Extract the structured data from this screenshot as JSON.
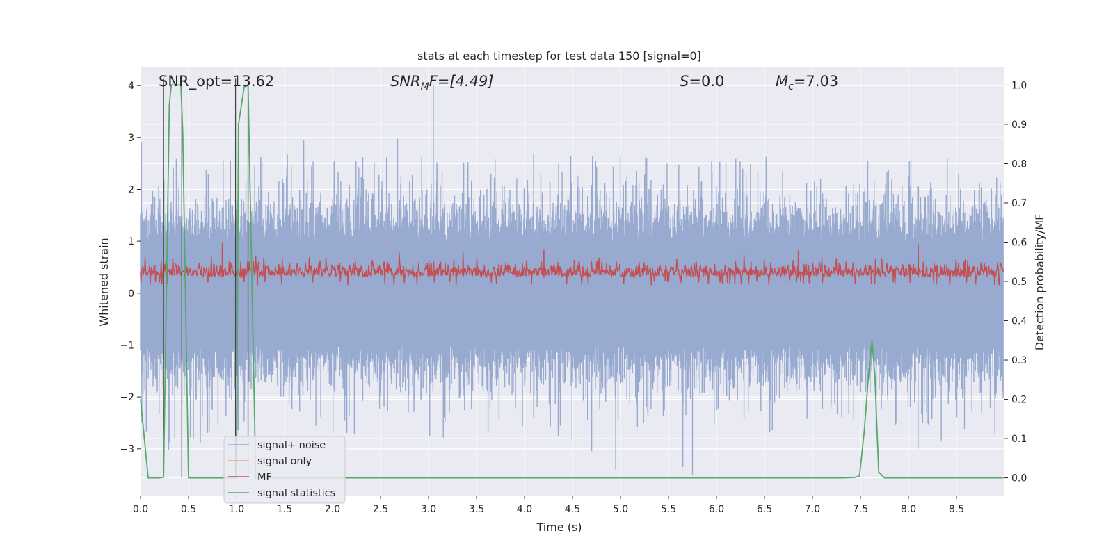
{
  "chart_data": {
    "type": "line",
    "title": "stats at each timestep for test data 150 [signal=0]",
    "xlabel": "Time (s)",
    "ylabel_left": "Whitened strain",
    "ylabel_right": "Detection probability/MF",
    "xlim": [
      0.0,
      9.0
    ],
    "ylim_left": [
      -3.9,
      4.35
    ],
    "ylim_right": [
      -0.045,
      1.045
    ],
    "x_ticks": [
      0.0,
      0.5,
      1.0,
      1.5,
      2.0,
      2.5,
      3.0,
      3.5,
      4.0,
      4.5,
      5.0,
      5.5,
      6.0,
      6.5,
      7.0,
      7.5,
      8.0,
      8.5
    ],
    "x_tick_labels": [
      "0.0",
      "0.5",
      "1.0",
      "1.5",
      "2.0",
      "2.5",
      "3.0",
      "3.5",
      "4.0",
      "4.5",
      "5.0",
      "5.5",
      "6.0",
      "6.5",
      "7.0",
      "7.5",
      "8.0",
      "8.5"
    ],
    "y_ticks_left": [
      4,
      3,
      2,
      1,
      0,
      -1,
      -2,
      -3
    ],
    "y_tick_labels_left": [
      "4",
      "3",
      "2",
      "1",
      "0",
      "−1",
      "−2",
      "−3"
    ],
    "y_ticks_right": [
      1.0,
      0.9,
      0.8,
      0.7,
      0.6,
      0.5,
      0.4,
      0.3,
      0.2,
      0.1,
      0.0
    ],
    "y_tick_labels_right": [
      "1.0",
      "0.9",
      "0.8",
      "0.7",
      "0.6",
      "0.5",
      "0.4",
      "0.3",
      "0.2",
      "0.1",
      "0.0"
    ],
    "annotations": {
      "snr_opt": "SNR_opt=13.62",
      "snr_mf_sym": "SNR",
      "snr_mf_sub": "M",
      "snr_mf_rest": "F=[4.49]",
      "s_sym": "S",
      "s_rest": "=0.0",
      "mc_sym": "M",
      "mc_sub": "c",
      "mc_rest": "=7.03"
    },
    "legend": [
      "signal+ noise",
      "signal only",
      "MF",
      "signal statistics"
    ],
    "colors": {
      "noise": "#98aacf",
      "signal_only": "#e9a78a",
      "mf": "#c44e52",
      "stats": "#55a868",
      "bg": "#eaeaf2",
      "grid": "#ffffff",
      "text": "#262626"
    },
    "series": [
      {
        "name": "signal+ noise",
        "description": "dense whitened strain noise around 0",
        "envelope_upper": 1.0,
        "envelope_lower": -1.0,
        "peak_max": 4.0,
        "peak_min": -3.5,
        "notable_spikes": [
          [
            0.01,
            2.9
          ],
          [
            1.7,
            2.95
          ],
          [
            3.05,
            4.0
          ],
          [
            4.7,
            -3.05
          ],
          [
            4.95,
            -3.4
          ],
          [
            5.65,
            -3.35
          ],
          [
            5.75,
            -3.5
          ],
          [
            8.1,
            -3.0
          ]
        ]
      },
      {
        "name": "signal only",
        "description": "zero signal (signal=0)",
        "values_constant": 0.0
      },
      {
        "name": "MF",
        "description": "matched filter output, right axis, fluctuates approx 0.5-0.55",
        "baseline": 0.5,
        "range": [
          0.49,
          0.59
        ],
        "notable_peaks": [
          [
            0.85,
            0.6
          ],
          [
            8.1,
            0.595
          ],
          [
            4.2,
            0.582
          ],
          [
            6.85,
            0.58
          ]
        ]
      },
      {
        "name": "signal statistics",
        "description": "detection probability, right axis",
        "x": [
          0.0,
          0.08,
          0.2,
          0.24,
          0.3,
          0.32,
          0.42,
          0.44,
          0.5,
          0.7,
          1.0,
          1.02,
          1.08,
          1.12,
          1.2,
          2.0,
          4.0,
          6.0,
          7.0,
          7.3,
          7.44,
          7.49,
          7.54,
          7.59,
          7.62,
          7.65,
          7.69,
          7.75,
          8.0,
          8.99
        ],
        "y": [
          0.2,
          0.0,
          0.0,
          0.002,
          0.95,
          1.0,
          1.0,
          0.88,
          0.0,
          0.0,
          0.0,
          0.9,
          0.995,
          1.0,
          0.0,
          0.0,
          0.0,
          0.0,
          0.0,
          0.0,
          0.001,
          0.005,
          0.12,
          0.28,
          0.35,
          0.26,
          0.015,
          0.0,
          0.0,
          0.0
        ]
      },
      {
        "name": "event markers",
        "description": "thin dark vertical lines",
        "x": [
          0.24,
          0.43,
          0.99,
          1.12
        ]
      }
    ]
  }
}
